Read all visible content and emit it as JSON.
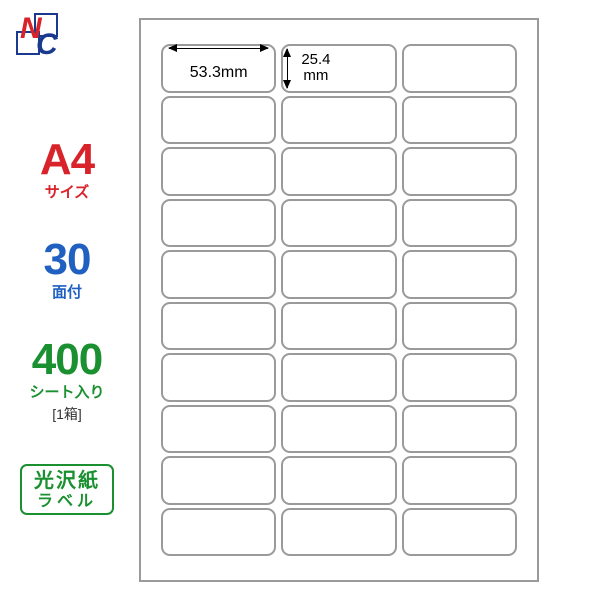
{
  "logo": {
    "n_color": "#d8232a",
    "c_color": "#1a3a8f",
    "square_stroke": "#1a3a8f"
  },
  "specs": {
    "size": {
      "big": "A4",
      "small": "サイズ",
      "color": "#d8232a"
    },
    "faces": {
      "big": "30",
      "small": "面付",
      "color": "#2060c0"
    },
    "sheets": {
      "big": "400",
      "small": "シート入り",
      "sub": "[1箱]",
      "color": "#1a9030"
    },
    "paper": {
      "line1": "光沢紙",
      "line2": "ラベル",
      "color": "#1a9030"
    }
  },
  "sheet": {
    "cols": 3,
    "rows": 10,
    "border_color": "#9a9a9a",
    "cell_radius": 9,
    "width_dim": "53.3mm",
    "height_dim_val": "25.4",
    "height_dim_unit": "mm"
  }
}
